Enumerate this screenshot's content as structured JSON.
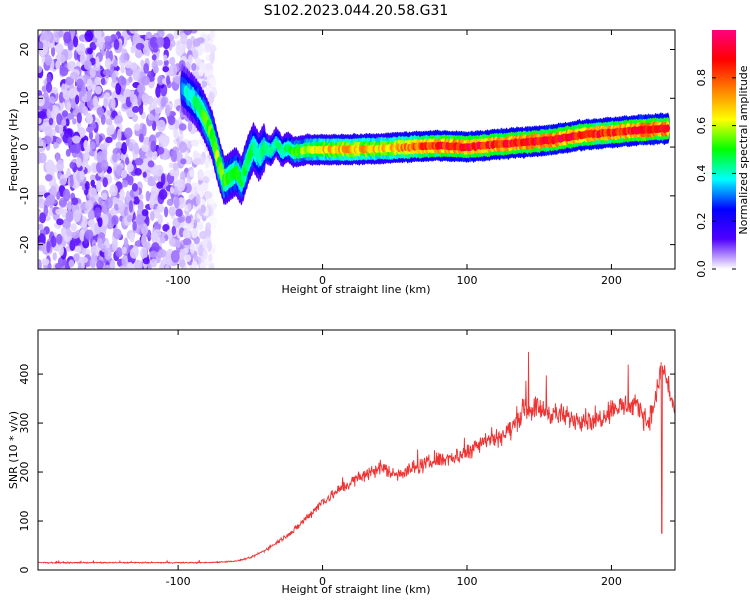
{
  "title": "S102.2023.044.20.58.G31",
  "chart_data": [
    {
      "type": "heatmap",
      "xlabel": "Height of straight line (km)",
      "ylabel": "Frequency (Hz)",
      "xlim": [
        -197,
        244
      ],
      "ylim": [
        -25,
        24
      ],
      "xticks": [
        -100,
        0,
        100,
        200
      ],
      "yticks": [
        -20,
        -10,
        0,
        10,
        20
      ],
      "grid": false,
      "colorbar": {
        "label": "Normalized spectral amplitude",
        "range": [
          0,
          1
        ],
        "ticks": [
          0.0,
          0.2,
          0.4,
          0.6,
          0.8
        ],
        "tick_labels": [
          "0.0",
          "0.2",
          "0.4",
          "0.6",
          "0.8"
        ],
        "colormap": [
          "#ffffff",
          "#5000ff",
          "#0000ff",
          "#00ffff",
          "#00ff00",
          "#ffff00",
          "#ff8000",
          "#ff0000",
          "#ff0080"
        ]
      },
      "trace": {
        "x": [
          -97,
          -90,
          -85,
          -80,
          -76,
          -72,
          -68,
          -64,
          -60,
          -56,
          -52,
          -48,
          -44,
          -40,
          -36,
          -32,
          -28,
          -24,
          -20,
          -10,
          0,
          20,
          40,
          60,
          80,
          100,
          120,
          140,
          160,
          180,
          200,
          220,
          240
        ],
        "y": [
          12,
          10,
          8,
          5,
          2,
          -3,
          -7,
          -6,
          -5,
          -7,
          -3,
          0,
          -2,
          0,
          -1,
          1,
          -1,
          0,
          -1,
          -0.5,
          -0.5,
          -0.5,
          -0.3,
          0,
          0.3,
          0,
          0.5,
          1,
          1.5,
          2.5,
          3,
          3.5,
          3.8
        ],
        "peak_amplitude": [
          0.35,
          0.45,
          0.5,
          0.55,
          0.55,
          0.6,
          0.55,
          0.5,
          0.5,
          0.5,
          0.5,
          0.5,
          0.45,
          0.5,
          0.45,
          0.45,
          0.45,
          0.5,
          0.55,
          0.6,
          0.7,
          0.75,
          0.7,
          0.8,
          0.9,
          0.95,
          0.9,
          0.95,
          0.95,
          0.9,
          0.9,
          0.95,
          0.95
        ]
      },
      "noise_region": {
        "x_range": [
          -197,
          -75
        ],
        "y_range": [
          -25,
          24
        ]
      }
    },
    {
      "type": "line",
      "xlabel": "Height of straight line (km)",
      "ylabel": "SNR (10 * v/v)",
      "xlim": [
        -197,
        244
      ],
      "ylim": [
        0,
        490
      ],
      "xticks": [
        -100,
        0,
        100,
        200
      ],
      "yticks": [
        0,
        100,
        200,
        300,
        400
      ],
      "grid": false,
      "series": [
        {
          "color": "#ee3333",
          "x": [
            -197,
            -150,
            -100,
            -80,
            -60,
            -50,
            -40,
            -30,
            -20,
            -10,
            0,
            10,
            20,
            30,
            40,
            50,
            60,
            70,
            80,
            90,
            100,
            110,
            120,
            130,
            140,
            150,
            160,
            170,
            180,
            190,
            200,
            210,
            220,
            225,
            230,
            235,
            240,
            244
          ],
          "y": [
            15,
            15,
            15,
            15,
            18,
            25,
            40,
            60,
            80,
            110,
            140,
            160,
            180,
            195,
            210,
            195,
            205,
            215,
            225,
            230,
            240,
            265,
            270,
            285,
            330,
            330,
            320,
            310,
            310,
            305,
            330,
            335,
            330,
            300,
            340,
            420,
            370,
            320
          ]
        }
      ]
    }
  ]
}
